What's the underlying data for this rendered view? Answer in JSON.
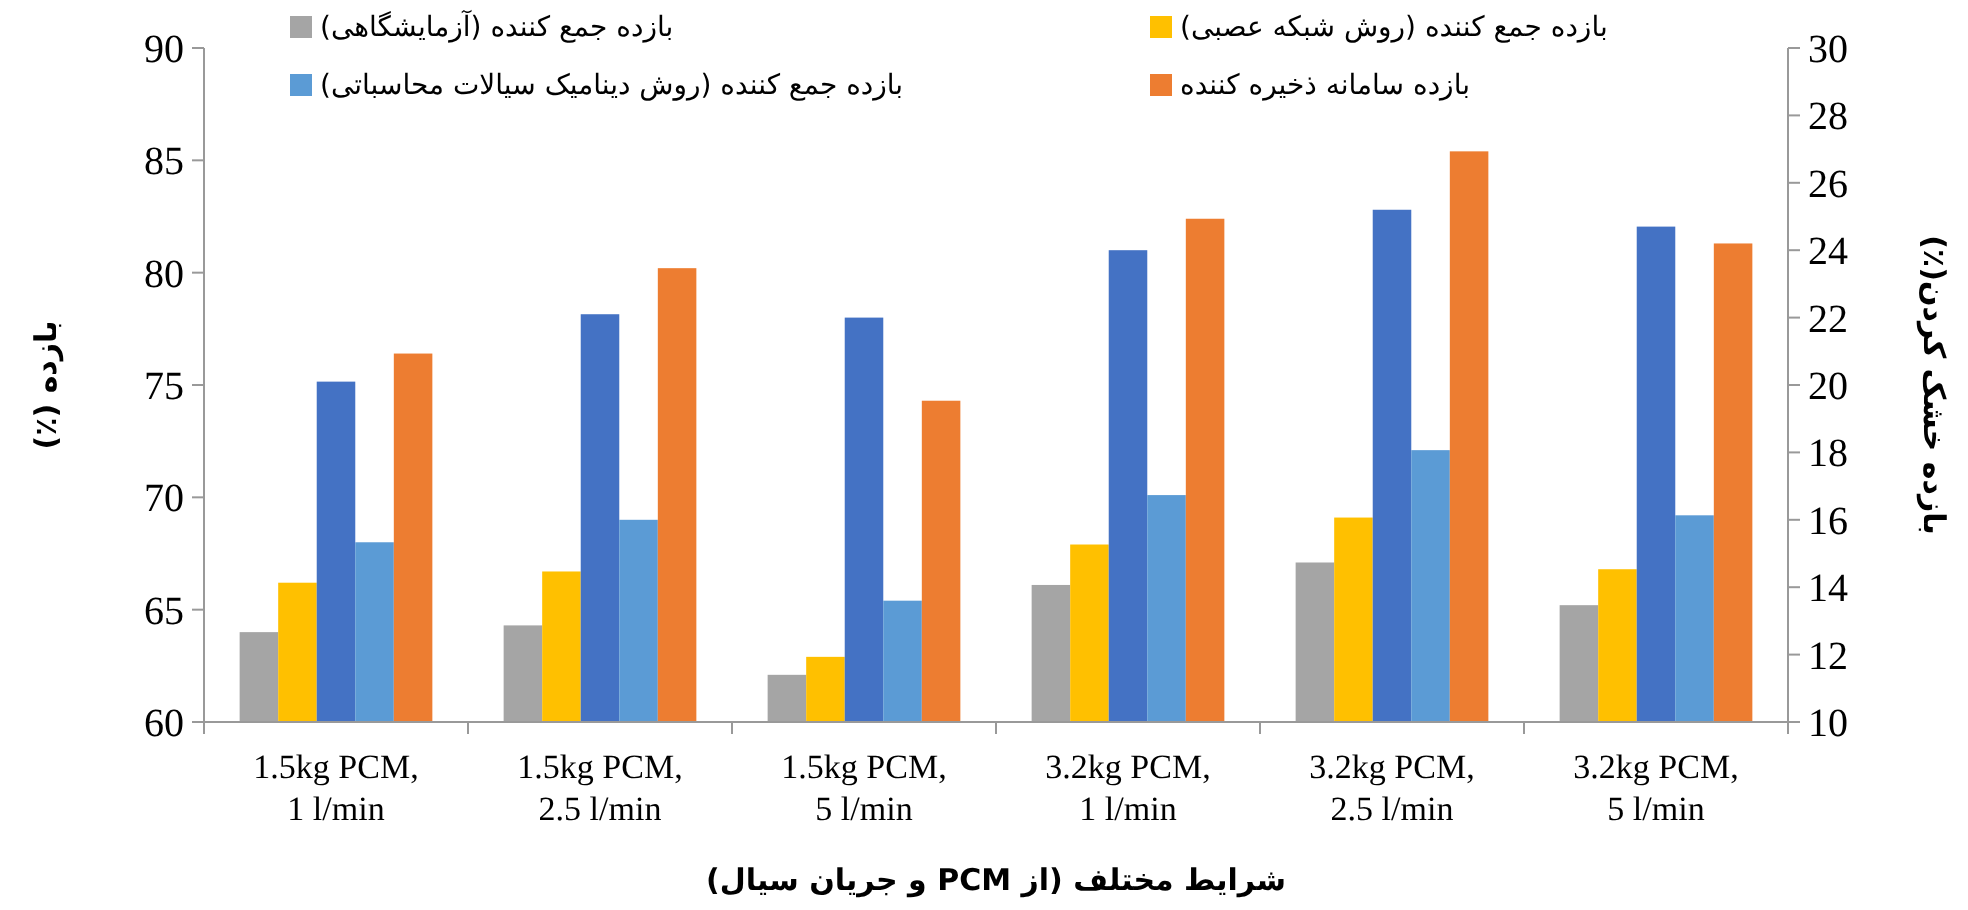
{
  "chart_data": {
    "type": "bar",
    "xlabel": "شرایط مختلف (از PCM و جریان سیال)",
    "ylabel": "بازده (٪)",
    "y2label": "بازده خشک کردن(٪)",
    "categories": [
      "1.5kg PCM,\n1 l/min",
      "1.5kg PCM,\n2.5 l/min",
      "1.5kg PCM,\n5 l/min",
      "3.2kg PCM,\n1 l/min",
      "3.2kg PCM,\n2.5 l/min",
      "3.2kg PCM,\n5 l/min"
    ],
    "series": [
      {
        "name": "بازده جمع کننده (آزمایشگاهی)",
        "color": "#a5a5a5",
        "values": [
          64.0,
          64.3,
          62.1,
          66.1,
          67.1,
          65.2
        ]
      },
      {
        "name": "بازده جمع کننده (روش شبکه عصبی)",
        "color": "#ffc000",
        "values": [
          66.2,
          66.7,
          62.9,
          67.9,
          69.1,
          66.8
        ]
      },
      {
        "color": "#4472c4",
        "axis": "y2",
        "values": [
          20.1,
          22.1,
          22.0,
          24.0,
          25.2,
          24.7
        ]
      },
      {
        "name": "بازده جمع کننده (روش دینامیک سیالات محاسباتی)",
        "color": "#5b9bd5",
        "values": [
          68.0,
          69.0,
          65.4,
          70.1,
          72.1,
          69.2
        ]
      },
      {
        "name": "بازده سامانه ذخیره کننده",
        "color": "#ed7d31",
        "values": [
          76.4,
          80.2,
          74.3,
          82.4,
          85.4,
          81.3
        ]
      }
    ],
    "ylim": [
      60,
      90
    ],
    "yticks": [
      60,
      65,
      70,
      75,
      80,
      85,
      90
    ],
    "y2lim": [
      10,
      30
    ],
    "y2ticks": [
      10,
      12,
      14,
      16,
      18,
      20,
      22,
      24,
      26,
      28,
      30
    ],
    "legend": "top",
    "grid": false
  }
}
